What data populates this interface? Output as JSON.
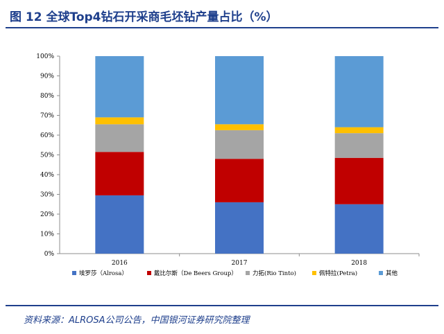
{
  "title": "图 12 全球Top4钻石开采商毛坯钻产量占比（%）",
  "source": "资料来源：ALROSA公司公告，中国银河证券研究院整理",
  "chart_data": {
    "type": "bar",
    "stacked": true,
    "categories": [
      "2016",
      "2017",
      "2018"
    ],
    "y_ticks": [
      "0%",
      "10%",
      "20%",
      "30%",
      "40%",
      "50%",
      "60%",
      "70%",
      "80%",
      "90%",
      "100%"
    ],
    "ylim": [
      0,
      100
    ],
    "grid": false,
    "legend_position": "bottom",
    "series": [
      {
        "name": "埃罗莎（Alrosa）",
        "color": "#4472c4",
        "values": [
          29.5,
          26,
          25
        ]
      },
      {
        "name": "戴比尔斯（De Beers Group）",
        "color": "#c00000",
        "values": [
          22,
          22,
          23.5
        ]
      },
      {
        "name": "力拓(Rio Tinto)",
        "color": "#a5a5a5",
        "values": [
          14,
          14.5,
          12.5
        ]
      },
      {
        "name": "佩特拉(Petra)",
        "color": "#ffc000",
        "values": [
          3.5,
          3,
          3
        ]
      },
      {
        "name": "其他",
        "color": "#5b9bd5",
        "values": [
          31,
          34.5,
          36
        ]
      }
    ]
  }
}
